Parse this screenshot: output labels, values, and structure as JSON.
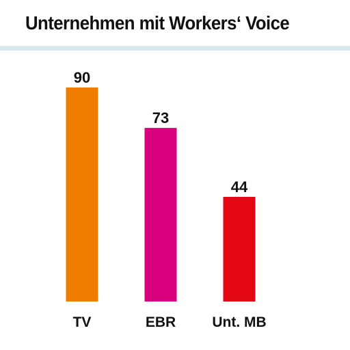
{
  "chart_data": {
    "type": "bar",
    "title": "Unternehmen mit Workers‘ Voice",
    "categories": [
      "TV",
      "EBR",
      "Unt. MB"
    ],
    "values": [
      90,
      73,
      44
    ],
    "colors": [
      "#f07d00",
      "#d9007e",
      "#e30613"
    ],
    "ylim": [
      0,
      90
    ],
    "grid": false,
    "legend": "none"
  }
}
